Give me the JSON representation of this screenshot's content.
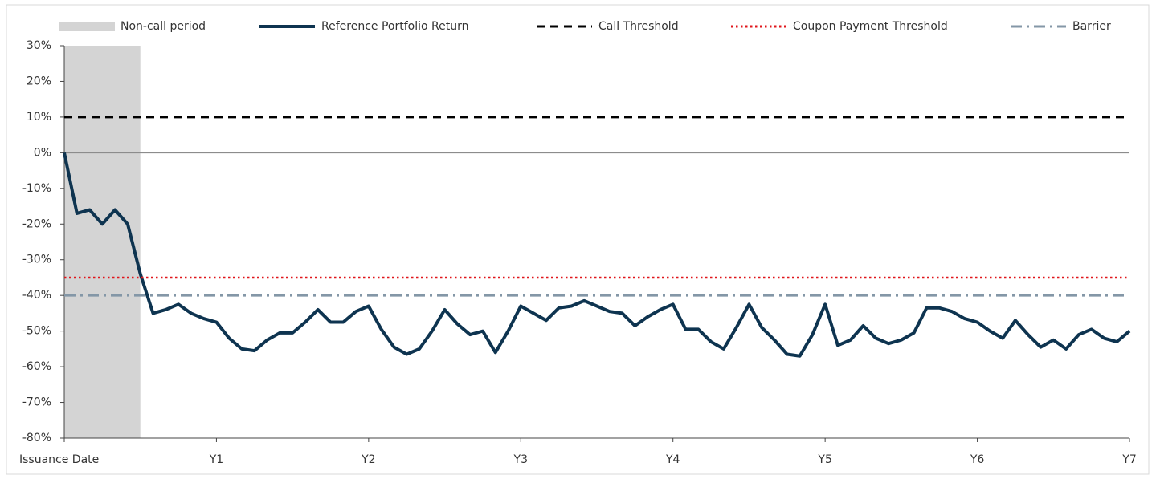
{
  "chart_data": {
    "type": "line",
    "categories": [
      "Issuance Date",
      null,
      null,
      null,
      null,
      null,
      null,
      null,
      null,
      null,
      null,
      null,
      "Y1",
      null,
      null,
      null,
      null,
      null,
      null,
      null,
      null,
      null,
      null,
      null,
      "Y2",
      null,
      null,
      null,
      null,
      null,
      null,
      null,
      null,
      null,
      null,
      null,
      "Y3",
      null,
      null,
      null,
      null,
      null,
      null,
      null,
      null,
      null,
      null,
      null,
      "Y4",
      null,
      null,
      null,
      null,
      null,
      null,
      null,
      null,
      null,
      null,
      null,
      "Y5",
      null,
      null,
      null,
      null,
      null,
      null,
      null,
      null,
      null,
      null,
      null,
      "Y6",
      null,
      null,
      null,
      null,
      null,
      null,
      null,
      null,
      null,
      null,
      null,
      "Y7"
    ],
    "shaded_period": {
      "name": "Non-call period",
      "color": "#d4d4d4",
      "start": 0,
      "end": 6
    },
    "series": [
      {
        "name": "Reference Portfolio Return",
        "color": "#0e3450",
        "values": [
          0,
          -17,
          -16,
          -20,
          -16,
          -20,
          -34,
          -45,
          -44,
          -42.5,
          -45,
          -46.5,
          -47.5,
          -52,
          -55,
          -55.5,
          -52.5,
          -50.5,
          -50.5,
          -47.5,
          -44,
          -47.5,
          -47.5,
          -44.5,
          -43,
          -49.5,
          -54.5,
          -56.5,
          -55,
          -50,
          -44,
          -48,
          -51,
          -50,
          -56,
          -50,
          -43,
          -45,
          -47,
          -43.5,
          -43,
          -41.5,
          -43,
          -44.5,
          -45,
          -48.5,
          -46,
          -44,
          -42.5,
          -49.5,
          -49.5,
          -53,
          -55,
          -49,
          -42.5,
          -49,
          -52.5,
          -56.5,
          -57,
          -51,
          -42.5,
          -54,
          -52.5,
          -48.5,
          -52,
          -53.5,
          -52.5,
          -50.5,
          -43.5,
          -43.5,
          -44.5,
          -46.5,
          -47.5,
          -50,
          -52,
          -47,
          -51,
          -54.5,
          -52.5,
          -55,
          -51,
          -49.5,
          -52,
          -53,
          -50
        ]
      },
      {
        "name": "Call Threshold",
        "color": "#000000",
        "dash": "dashed",
        "value": 10
      },
      {
        "name": "Coupon Payment Threshold",
        "color": "#e0161b",
        "dash": "dotted",
        "value": -35
      },
      {
        "name": "Barrier",
        "color": "#8497a7",
        "dash": "dashdot",
        "value": -40
      }
    ],
    "ylim": [
      -80,
      30
    ],
    "yticks": [
      {
        "value": -80,
        "label": "-80%"
      },
      {
        "value": -70,
        "label": "-70%"
      },
      {
        "value": -60,
        "label": "-60%"
      },
      {
        "value": -50,
        "label": "-50%"
      },
      {
        "value": -40,
        "label": "-40%"
      },
      {
        "value": -30,
        "label": "-30%"
      },
      {
        "value": -20,
        "label": "-20%"
      },
      {
        "value": -10,
        "label": "-10%"
      },
      {
        "value": 0,
        "label": "0%"
      },
      {
        "value": 10,
        "label": "10%"
      },
      {
        "value": 20,
        "label": "20%"
      },
      {
        "value": 30,
        "label": "30%"
      }
    ],
    "zero_line": true,
    "legend": "top"
  }
}
